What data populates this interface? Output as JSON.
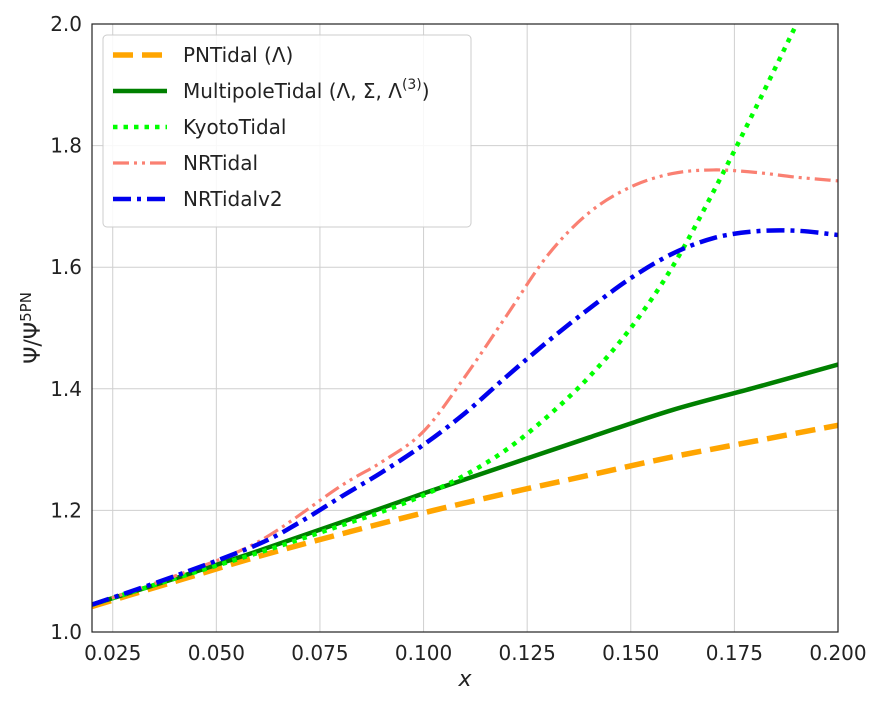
{
  "chart_data": {
    "type": "line",
    "xlabel": "x",
    "ylabel": "Ψ/Ψ",
    "ylabel_sup": "5PN",
    "xlim": [
      0.02,
      0.2
    ],
    "ylim": [
      1.0,
      2.0
    ],
    "xticks": [
      "0.025",
      "0.050",
      "0.075",
      "0.100",
      "0.125",
      "0.150",
      "0.175",
      "0.200"
    ],
    "xtick_values": [
      0.025,
      0.05,
      0.075,
      0.1,
      0.125,
      0.15,
      0.175,
      0.2
    ],
    "yticks": [
      "1.0",
      "1.2",
      "1.4",
      "1.6",
      "1.8",
      "2.0"
    ],
    "ytick_values": [
      1.0,
      1.2,
      1.4,
      1.6,
      1.8,
      2.0
    ],
    "grid": true,
    "legend_position": "top-left",
    "series": [
      {
        "name": "PNTidal (Λ)",
        "label_main": "PNTidal (Λ)",
        "label_sup": "",
        "label_tail": "",
        "color": "#FFA500",
        "style": "dashed",
        "x": [
          0.02,
          0.04,
          0.06,
          0.08,
          0.1,
          0.12,
          0.14,
          0.16,
          0.18,
          0.2
        ],
        "y": [
          1.042,
          1.083,
          1.124,
          1.161,
          1.196,
          1.228,
          1.258,
          1.288,
          1.314,
          1.34
        ]
      },
      {
        "name": "MultipoleTidal (Λ, Σ, Λ(3))",
        "label_main": "MultipoleTidal (Λ, Σ, Λ",
        "label_sup": "(3)",
        "label_tail": ")",
        "color": "#008000",
        "style": "solid",
        "x": [
          0.02,
          0.04,
          0.06,
          0.08,
          0.1,
          0.12,
          0.14,
          0.16,
          0.18,
          0.2
        ],
        "y": [
          1.045,
          1.088,
          1.133,
          1.18,
          1.228,
          1.274,
          1.32,
          1.365,
          1.402,
          1.44
        ]
      },
      {
        "name": "KyotoTidal",
        "label_main": "KyotoTidal",
        "label_sup": "",
        "label_tail": "",
        "color": "#00FF00",
        "style": "dotted",
        "x": [
          0.02,
          0.04,
          0.06,
          0.07,
          0.08,
          0.09,
          0.1,
          0.11,
          0.12,
          0.13,
          0.14,
          0.15,
          0.16,
          0.17,
          0.18,
          0.19
        ],
        "y": [
          1.045,
          1.088,
          1.13,
          1.152,
          1.175,
          1.198,
          1.225,
          1.258,
          1.3,
          1.355,
          1.42,
          1.5,
          1.6,
          1.725,
          1.86,
          2.0
        ]
      },
      {
        "name": "NRTidal",
        "label_main": "NRTidal",
        "label_sup": "",
        "label_tail": "",
        "color": "#FA8072",
        "style": "dashdotdot",
        "x": [
          0.02,
          0.04,
          0.06,
          0.08,
          0.09,
          0.1,
          0.11,
          0.12,
          0.13,
          0.14,
          0.15,
          0.16,
          0.17,
          0.18,
          0.19,
          0.2
        ],
        "y": [
          1.045,
          1.092,
          1.148,
          1.24,
          1.28,
          1.33,
          1.42,
          1.52,
          1.62,
          1.69,
          1.732,
          1.754,
          1.76,
          1.756,
          1.748,
          1.742
        ]
      },
      {
        "name": "NRTidalv2",
        "label_main": "NRTidalv2",
        "label_sup": "",
        "label_tail": "",
        "color": "#0000EE",
        "style": "dashdot",
        "x": [
          0.02,
          0.04,
          0.06,
          0.07,
          0.08,
          0.09,
          0.1,
          0.11,
          0.12,
          0.13,
          0.14,
          0.15,
          0.16,
          0.17,
          0.18,
          0.19,
          0.2
        ],
        "y": [
          1.045,
          1.092,
          1.144,
          1.18,
          1.222,
          1.263,
          1.308,
          1.36,
          1.42,
          1.478,
          1.532,
          1.582,
          1.622,
          1.648,
          1.659,
          1.66,
          1.653
        ]
      }
    ]
  }
}
